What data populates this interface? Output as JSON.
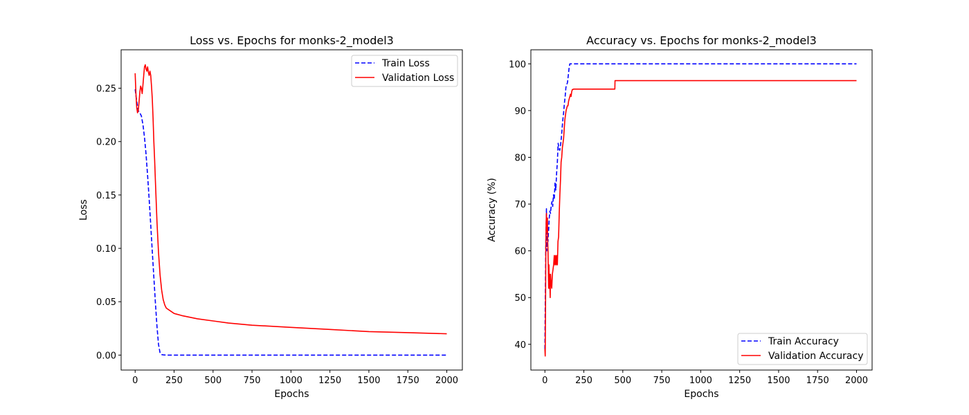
{
  "chart_data": [
    {
      "type": "line",
      "title": "Loss vs. Epochs for monks-2_model3",
      "xlabel": "Epochs",
      "ylabel": "Loss",
      "xlim": [
        -90,
        2100
      ],
      "ylim": [
        -0.014,
        0.286
      ],
      "xticks": [
        0,
        250,
        500,
        750,
        1000,
        1250,
        1500,
        1750,
        2000
      ],
      "xtick_labels": [
        "0",
        "250",
        "500",
        "750",
        "1000",
        "1250",
        "1500",
        "1750",
        "2000"
      ],
      "yticks": [
        0.0,
        0.05,
        0.1,
        0.15,
        0.2,
        0.25
      ],
      "ytick_labels": [
        "0.00",
        "0.05",
        "0.10",
        "0.15",
        "0.20",
        "0.25"
      ],
      "legend_position": "top-right",
      "grid": false,
      "series": [
        {
          "name": "Train Loss",
          "color": "#0000ff",
          "style": "dashed",
          "x": [
            0,
            10,
            20,
            30,
            40,
            50,
            60,
            70,
            80,
            90,
            100,
            110,
            120,
            130,
            140,
            150,
            160,
            170,
            180,
            190,
            200,
            250,
            500,
            1000,
            1500,
            2000
          ],
          "y": [
            0.249,
            0.238,
            0.229,
            0.227,
            0.224,
            0.216,
            0.204,
            0.188,
            0.168,
            0.146,
            0.122,
            0.097,
            0.073,
            0.049,
            0.027,
            0.01,
            0.002,
            0.0005,
            0.0002,
            0.0001,
            0.0,
            0.0,
            0.0,
            0.0,
            0.0,
            0.0
          ]
        },
        {
          "name": "Validation Loss",
          "color": "#ff0000",
          "style": "solid",
          "x": [
            0,
            5,
            10,
            15,
            20,
            25,
            30,
            35,
            40,
            45,
            50,
            55,
            60,
            65,
            70,
            75,
            80,
            85,
            90,
            95,
            100,
            105,
            110,
            115,
            120,
            125,
            130,
            140,
            150,
            160,
            170,
            180,
            190,
            200,
            220,
            250,
            300,
            400,
            500,
            600,
            750,
            1000,
            1250,
            1500,
            1750,
            2000
          ],
          "y": [
            0.264,
            0.245,
            0.232,
            0.227,
            0.229,
            0.237,
            0.246,
            0.252,
            0.25,
            0.245,
            0.253,
            0.262,
            0.27,
            0.272,
            0.268,
            0.266,
            0.27,
            0.265,
            0.262,
            0.266,
            0.262,
            0.252,
            0.24,
            0.222,
            0.2,
            0.183,
            0.163,
            0.125,
            0.096,
            0.075,
            0.061,
            0.052,
            0.047,
            0.044,
            0.042,
            0.039,
            0.037,
            0.034,
            0.032,
            0.03,
            0.028,
            0.026,
            0.024,
            0.022,
            0.021,
            0.02
          ]
        }
      ]
    },
    {
      "type": "line",
      "title": "Accuracy vs. Epochs for monks-2_model3",
      "xlabel": "Epochs",
      "ylabel": "Accuracy (%)",
      "xlim": [
        -90,
        2100
      ],
      "ylim": [
        34.5,
        103.0
      ],
      "xticks": [
        0,
        250,
        500,
        750,
        1000,
        1250,
        1500,
        1750,
        2000
      ],
      "xtick_labels": [
        "0",
        "250",
        "500",
        "750",
        "1000",
        "1250",
        "1500",
        "1750",
        "2000"
      ],
      "yticks": [
        40,
        50,
        60,
        70,
        80,
        90,
        100
      ],
      "ytick_labels": [
        "40",
        "50",
        "60",
        "70",
        "80",
        "90",
        "100"
      ],
      "legend_position": "bottom-right",
      "grid": false,
      "series": [
        {
          "name": "Train Accuracy",
          "color": "#0000ff",
          "style": "dashed",
          "x": [
            0,
            2,
            4,
            6,
            8,
            10,
            12,
            14,
            16,
            18,
            20,
            22,
            25,
            28,
            32,
            36,
            40,
            45,
            50,
            55,
            60,
            65,
            70,
            75,
            80,
            85,
            90,
            95,
            100,
            105,
            110,
            115,
            120,
            125,
            130,
            135,
            140,
            145,
            150,
            155,
            160,
            165,
            170,
            200,
            500,
            1000,
            1500,
            2000
          ],
          "y": [
            39.0,
            47.5,
            55.0,
            62.0,
            65.0,
            69.0,
            60.0,
            65.0,
            67.0,
            64.0,
            62.0,
            63.5,
            65.0,
            67.0,
            68.5,
            68.0,
            69.5,
            70.5,
            69.5,
            72.0,
            71.0,
            74.5,
            73.0,
            76.5,
            79.0,
            83.0,
            82.0,
            81.5,
            82.5,
            84.0,
            86.0,
            88.0,
            89.5,
            91.5,
            93.0,
            95.0,
            95.5,
            96.0,
            97.5,
            99.0,
            100.0,
            100.0,
            100.0,
            100.0,
            100.0,
            100.0,
            100.0,
            100.0
          ]
        },
        {
          "name": "Validation Accuracy",
          "color": "#ff0000",
          "style": "solid",
          "x": [
            0,
            2,
            4,
            6,
            8,
            10,
            12,
            14,
            16,
            18,
            20,
            22,
            24,
            26,
            28,
            30,
            32,
            34,
            36,
            38,
            40,
            44,
            48,
            52,
            56,
            60,
            64,
            68,
            72,
            76,
            80,
            84,
            88,
            92,
            96,
            100,
            104,
            108,
            112,
            116,
            120,
            124,
            128,
            132,
            136,
            140,
            144,
            148,
            152,
            156,
            160,
            164,
            168,
            172,
            176,
            180,
            184,
            188,
            192,
            196,
            200,
            205,
            210,
            250,
            300,
            350,
            400,
            449,
            450,
            451,
            500,
            1000,
            1500,
            2000
          ],
          "y": [
            39.0,
            37.5,
            47.0,
            60.0,
            66.0,
            68.0,
            65.0,
            64.0,
            67.0,
            62.0,
            60.0,
            56.0,
            52.0,
            57.0,
            52.0,
            55.0,
            53.0,
            50.0,
            55.0,
            54.0,
            53.0,
            52.0,
            55.0,
            56.0,
            57.0,
            59.0,
            57.0,
            59.0,
            57.0,
            59.0,
            57.0,
            62.0,
            63.0,
            68.0,
            72.0,
            75.0,
            79.0,
            80.0,
            82.0,
            83.0,
            84.0,
            86.0,
            88.0,
            89.0,
            90.0,
            90.5,
            91.0,
            91.0,
            92.0,
            92.5,
            93.0,
            93.5,
            93.0,
            94.0,
            94.5,
            94.5,
            94.6,
            94.6,
            94.6,
            94.6,
            94.6,
            94.6,
            94.6,
            94.6,
            94.6,
            94.6,
            94.6,
            94.6,
            96.4,
            96.4,
            96.4,
            96.4,
            96.4,
            96.4
          ]
        }
      ]
    }
  ]
}
